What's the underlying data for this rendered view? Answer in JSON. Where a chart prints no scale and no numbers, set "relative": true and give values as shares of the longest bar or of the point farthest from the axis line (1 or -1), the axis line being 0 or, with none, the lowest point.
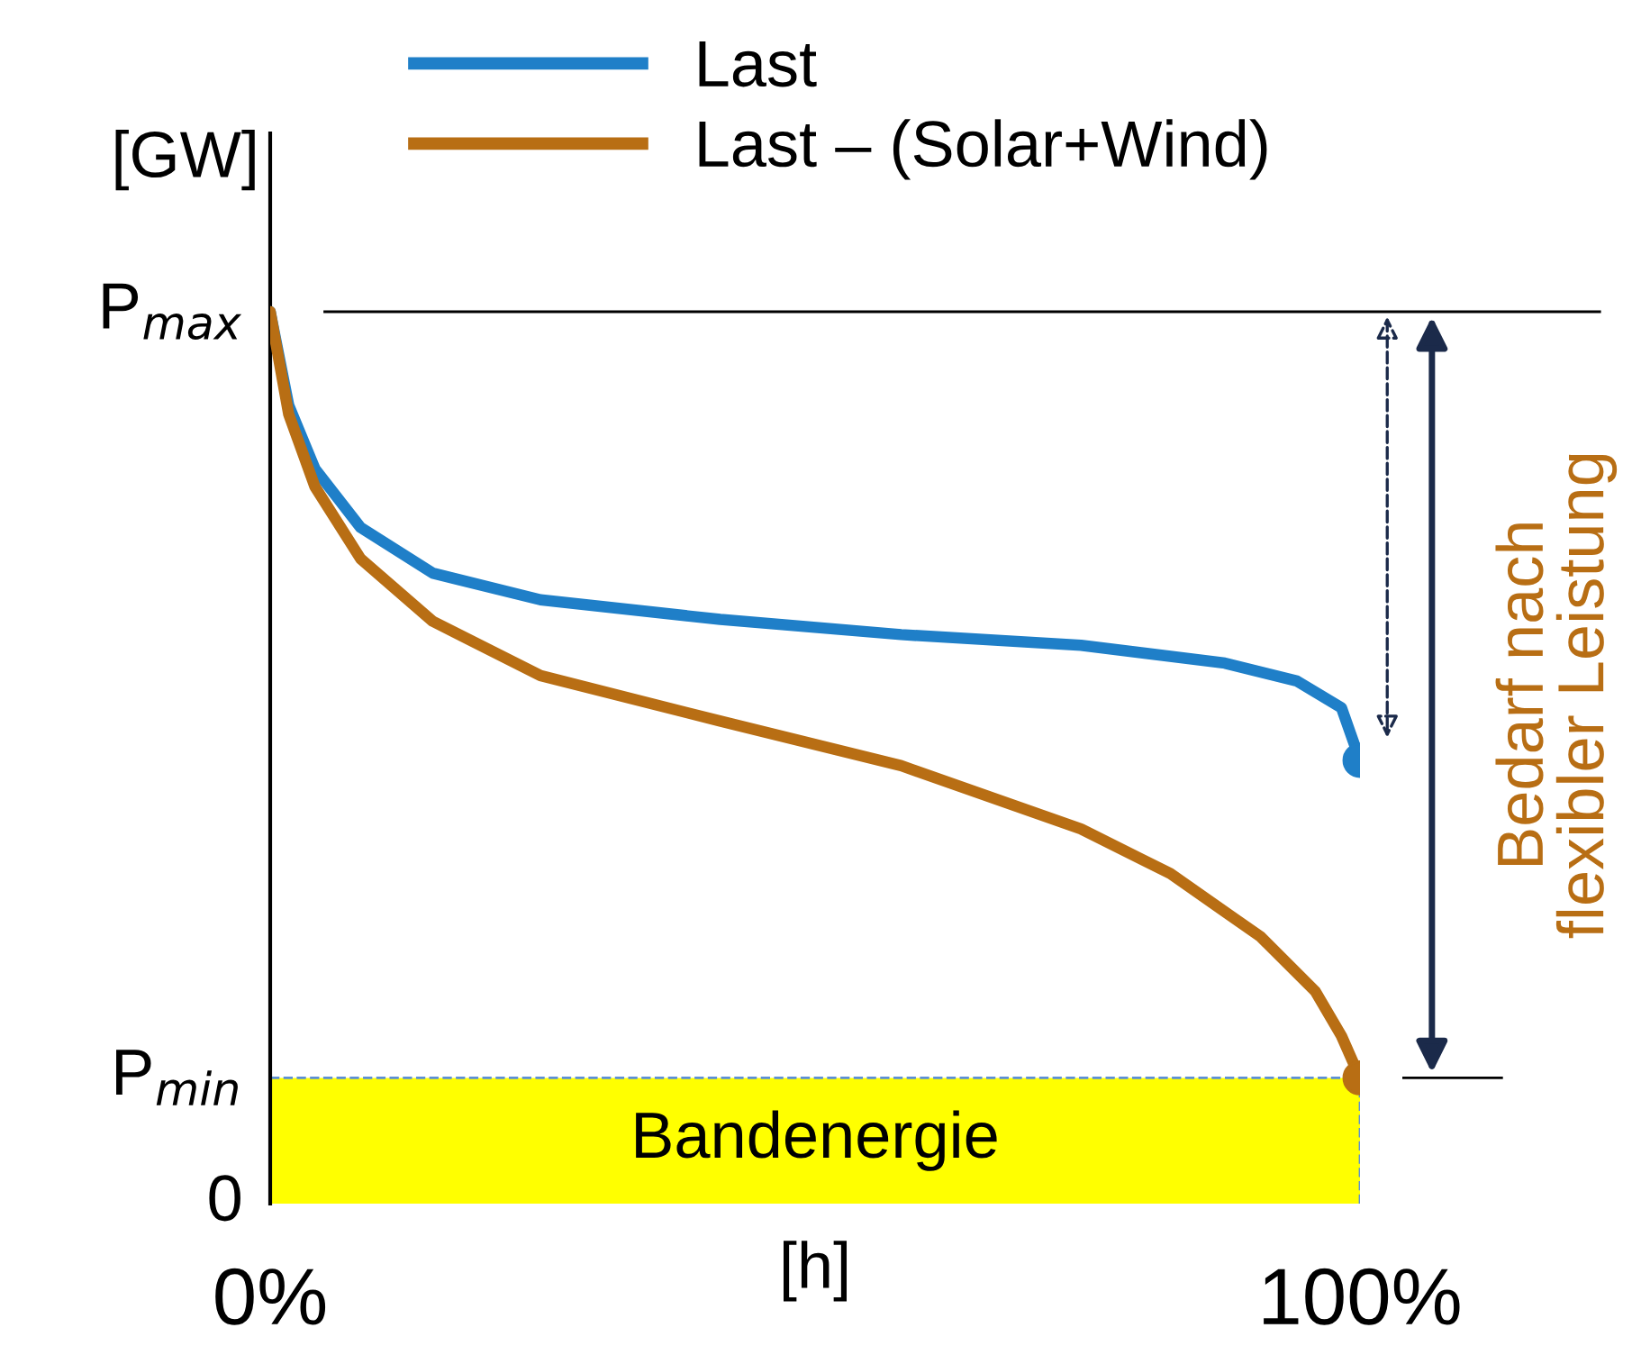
{
  "chart_data": {
    "type": "line",
    "relative": true,
    "xlabel": "[h]",
    "ylabel": "[GW]",
    "xlim": [
      0,
      100
    ],
    "xticks": [
      {
        "value": 0,
        "label": "0%"
      },
      {
        "value": 100,
        "label": "100%"
      }
    ],
    "legend": "top",
    "line_style": "solid",
    "grid": false,
    "series": [
      {
        "name": "Last",
        "color": "#1f7fc8",
        "x": [
          0,
          1.7,
          4.1,
          8.3,
          14.9,
          24.8,
          41.3,
          57.9,
          74.4,
          87.6,
          94.2,
          98.3,
          100
        ],
        "values": [
          1.0,
          0.895,
          0.824,
          0.758,
          0.707,
          0.677,
          0.655,
          0.638,
          0.626,
          0.606,
          0.586,
          0.556,
          0.497
        ]
      },
      {
        "name": "Last – (Solar+Wind)",
        "color": "#b86e14",
        "x": [
          0,
          1.7,
          4.1,
          8.3,
          14.9,
          24.8,
          41.3,
          57.9,
          74.4,
          82.6,
          90.9,
          95.9,
          98.3,
          100
        ],
        "values": [
          1.0,
          0.885,
          0.804,
          0.723,
          0.653,
          0.592,
          0.541,
          0.491,
          0.42,
          0.37,
          0.299,
          0.238,
          0.188,
          0.141
        ]
      }
    ],
    "ref_lines": [
      {
        "axis": "y",
        "value": 1.0,
        "label": "P$_{max}$",
        "color": "#000000"
      },
      {
        "axis": "y",
        "value": 0.141,
        "label": "P$_{min}$",
        "color": "#5b8fd6",
        "line_style": "dashed"
      }
    ],
    "bands": [
      {
        "axis": "y",
        "from": 0,
        "to": 0.141,
        "label": "Bandenergie",
        "color": "#ffff00"
      }
    ],
    "annotations": [
      "0",
      "Bedarf nach\nflexibler Leistung"
    ]
  }
}
